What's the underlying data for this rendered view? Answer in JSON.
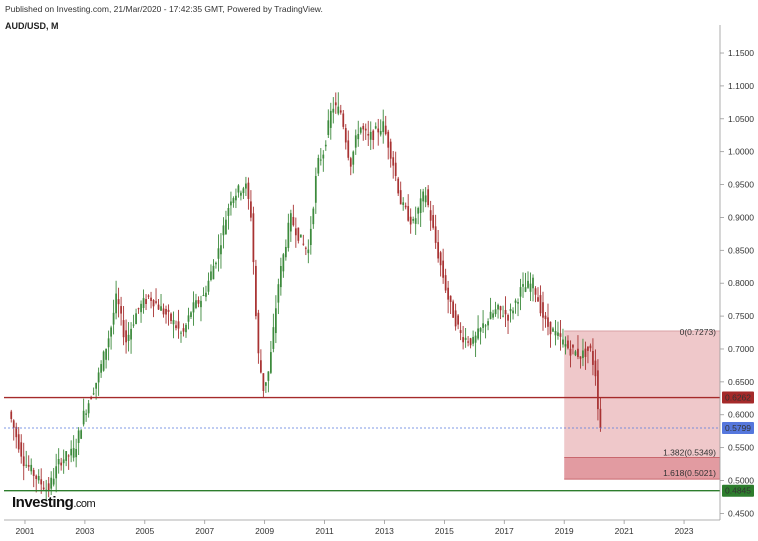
{
  "header": {
    "published": "Published on Investing.com, 21/Mar/2020 - 17:42:35 GMT, Powered by TradingView.",
    "symbol": "AUD/USD, M"
  },
  "logo": {
    "main": "Investing",
    "suffix": ".com"
  },
  "chart_data": {
    "type": "candlestick",
    "title": "",
    "x_ticks": [
      "2001",
      "2003",
      "2005",
      "2007",
      "2009",
      "2011",
      "2013",
      "2015",
      "2017",
      "2019",
      "2021",
      "2023"
    ],
    "y_ticks": [
      "1.1500",
      "1.1000",
      "1.0500",
      "1.0000",
      "0.9500",
      "0.9000",
      "0.8500",
      "0.8000",
      "0.7500",
      "0.7000",
      "0.6500",
      "0.6000",
      "0.5500",
      "0.5000",
      "0.4500"
    ],
    "ylim": [
      0.443,
      1.185
    ],
    "xlim": [
      2000.3,
      2024.2
    ],
    "colors": {
      "up": "#3c8a3c",
      "down": "#a83232",
      "fib_zone": "#e9b5b8",
      "fib_target": "#dd8a90",
      "red_line": "#a52a2a",
      "green_line": "#2d7d2d",
      "current_line": "#5577dd"
    },
    "series_path": [
      [
        2000.5,
        0.605
      ],
      [
        2001.0,
        0.53
      ],
      [
        2001.5,
        0.5
      ],
      [
        2001.8,
        0.485
      ],
      [
        2002.2,
        0.53
      ],
      [
        2002.7,
        0.545
      ],
      [
        2003.0,
        0.6
      ],
      [
        2003.5,
        0.66
      ],
      [
        2003.9,
        0.73
      ],
      [
        2004.1,
        0.78
      ],
      [
        2004.4,
        0.71
      ],
      [
        2004.8,
        0.76
      ],
      [
        2005.2,
        0.78
      ],
      [
        2005.6,
        0.76
      ],
      [
        2006.0,
        0.74
      ],
      [
        2006.3,
        0.72
      ],
      [
        2006.6,
        0.76
      ],
      [
        2007.0,
        0.78
      ],
      [
        2007.5,
        0.85
      ],
      [
        2007.9,
        0.93
      ],
      [
        2008.4,
        0.95
      ],
      [
        2008.6,
        0.9
      ],
      [
        2008.8,
        0.7
      ],
      [
        2009.0,
        0.64
      ],
      [
        2009.2,
        0.67
      ],
      [
        2009.5,
        0.8
      ],
      [
        2009.9,
        0.9
      ],
      [
        2010.3,
        0.86
      ],
      [
        2010.5,
        0.85
      ],
      [
        2010.8,
        0.98
      ],
      [
        2011.0,
        1.0
      ],
      [
        2011.3,
        1.07
      ],
      [
        2011.6,
        1.06
      ],
      [
        2011.9,
        0.98
      ],
      [
        2012.2,
        1.04
      ],
      [
        2012.5,
        1.02
      ],
      [
        2013.0,
        1.04
      ],
      [
        2013.3,
        0.99
      ],
      [
        2013.6,
        0.92
      ],
      [
        2014.0,
        0.89
      ],
      [
        2014.4,
        0.94
      ],
      [
        2014.8,
        0.85
      ],
      [
        2015.2,
        0.77
      ],
      [
        2015.6,
        0.72
      ],
      [
        2016.0,
        0.71
      ],
      [
        2016.4,
        0.74
      ],
      [
        2016.8,
        0.76
      ],
      [
        2017.2,
        0.75
      ],
      [
        2017.6,
        0.79
      ],
      [
        2018.0,
        0.8
      ],
      [
        2018.4,
        0.74
      ],
      [
        2018.8,
        0.72
      ],
      [
        2019.2,
        0.7
      ],
      [
        2019.6,
        0.69
      ],
      [
        2019.9,
        0.7
      ],
      [
        2020.0,
        0.68
      ],
      [
        2020.1,
        0.66
      ],
      [
        2020.22,
        0.58
      ]
    ],
    "horizontal_lines": [
      {
        "price": 0.6262,
        "label": "0.6262",
        "kind": "resistance"
      },
      {
        "price": 0.5799,
        "label": "0.5799",
        "kind": "current"
      },
      {
        "price": 0.4845,
        "label": "0.4845",
        "kind": "support"
      }
    ],
    "fib_levels": [
      {
        "label": "0(0.7273)",
        "price": 0.7273
      },
      {
        "label": "1.382(0.5349)",
        "price": 0.5349
      },
      {
        "label": "1.618(0.5021)",
        "price": 0.5021
      }
    ],
    "fib_box": {
      "x_start": 2019.0,
      "x_end": 2024.2
    }
  }
}
